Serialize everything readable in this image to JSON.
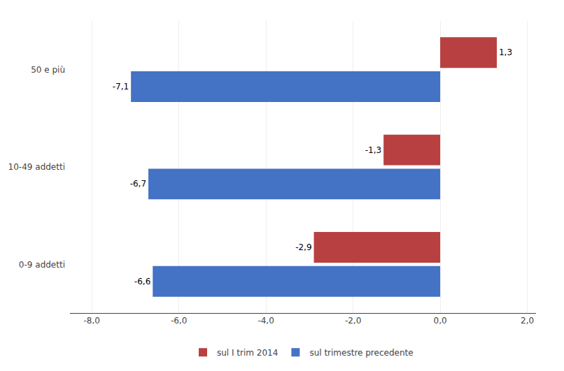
{
  "chart_data": {
    "type": "bar",
    "orientation": "horizontal",
    "categories": [
      "0-9 addetti",
      "10-49 addetti",
      "50 e più"
    ],
    "series": [
      {
        "name": "sul I trim 2014",
        "color": "#b94040",
        "values": [
          -2.9,
          -1.3,
          1.3
        ],
        "value_labels": [
          "-2,9",
          "-1,3",
          "1,3"
        ]
      },
      {
        "name": "sul trimestre precedente",
        "color": "#4472c4",
        "values": [
          -6.6,
          -6.7,
          -7.1
        ],
        "value_labels": [
          "-6,6",
          "-6,7",
          "-7,1"
        ]
      }
    ],
    "xlim": [
      -8.5,
      2.2
    ],
    "xticks": [
      {
        "value": -8.0,
        "label": "-8,0"
      },
      {
        "value": -6.0,
        "label": "-6,0"
      },
      {
        "value": -4.0,
        "label": "-4,0"
      },
      {
        "value": -2.0,
        "label": "-2,0"
      },
      {
        "value": 0.0,
        "label": "0,0"
      },
      {
        "value": 2.0,
        "label": "2,0"
      }
    ],
    "grid": true,
    "data_labels": true,
    "legend": "bottom"
  }
}
